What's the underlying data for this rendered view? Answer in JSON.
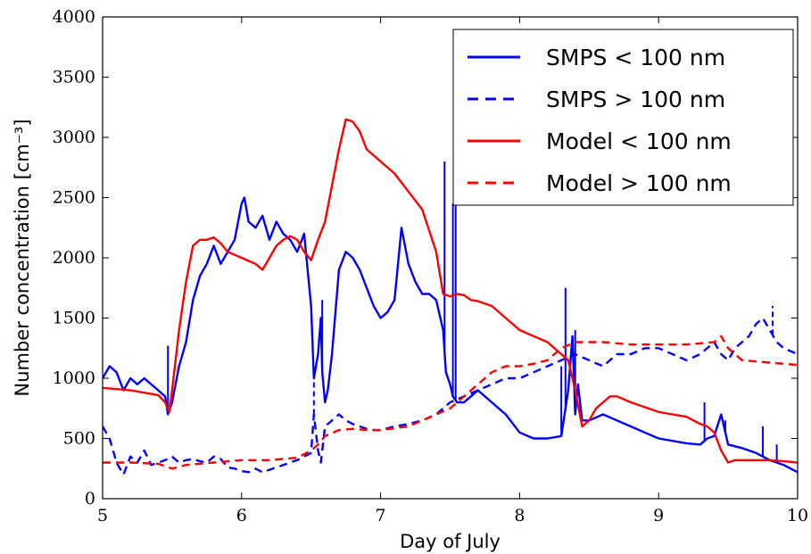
{
  "chart_data": {
    "type": "line",
    "xlabel": "Day of July",
    "ylabel": "Number concentration [cm⁻³]",
    "xlim": [
      5,
      10
    ],
    "ylim": [
      0,
      4000
    ],
    "xticks": [
      5,
      6,
      7,
      8,
      9,
      10
    ],
    "yticks": [
      0,
      500,
      1000,
      1500,
      2000,
      2500,
      3000,
      3500,
      4000
    ],
    "grid": false,
    "legend_position": "top-right",
    "series": [
      {
        "name": "SMPS < 100 nm",
        "legend_main": "SMPS",
        "legend_op": "<",
        "legend_size": "100 nm",
        "color": "#0000ff",
        "dash": "solid",
        "x": [
          5.0,
          5.05,
          5.1,
          5.15,
          5.2,
          5.25,
          5.3,
          5.35,
          5.4,
          5.45,
          5.47,
          5.5,
          5.55,
          5.6,
          5.65,
          5.7,
          5.75,
          5.8,
          5.85,
          5.9,
          5.95,
          6.0,
          6.02,
          6.05,
          6.1,
          6.15,
          6.2,
          6.25,
          6.3,
          6.35,
          6.4,
          6.45,
          6.5,
          6.52,
          6.55,
          6.57,
          6.58,
          6.6,
          6.62,
          6.65,
          6.7,
          6.75,
          6.8,
          6.85,
          6.9,
          6.95,
          7.0,
          7.05,
          7.1,
          7.15,
          7.2,
          7.25,
          7.3,
          7.35,
          7.4,
          7.45,
          7.47,
          7.5,
          7.52,
          7.55,
          7.6,
          7.65,
          7.7,
          7.75,
          7.8,
          7.85,
          7.9,
          8.0,
          8.1,
          8.2,
          8.3,
          8.35,
          8.38,
          8.4,
          8.42,
          8.45,
          8.5,
          8.6,
          8.7,
          8.8,
          8.9,
          9.0,
          9.1,
          9.2,
          9.3,
          9.35,
          9.4,
          9.45,
          9.5,
          9.6,
          9.7,
          9.8,
          9.9,
          10.0
        ],
        "y": [
          1000,
          1100,
          1050,
          900,
          1000,
          950,
          1000,
          950,
          900,
          850,
          700,
          800,
          1100,
          1300,
          1650,
          1850,
          1950,
          2100,
          1950,
          2050,
          2150,
          2450,
          2500,
          2300,
          2250,
          2350,
          2150,
          2300,
          2200,
          2150,
          2050,
          2200,
          1600,
          1000,
          1200,
          1500,
          1050,
          800,
          900,
          1200,
          1900,
          2050,
          2000,
          1900,
          1750,
          1600,
          1500,
          1550,
          1650,
          2250,
          1950,
          1800,
          1700,
          1700,
          1650,
          1400,
          1050,
          950,
          850,
          800,
          800,
          850,
          900,
          850,
          800,
          750,
          700,
          550,
          500,
          500,
          520,
          900,
          1350,
          700,
          950,
          650,
          650,
          700,
          650,
          600,
          550,
          500,
          480,
          460,
          450,
          500,
          520,
          700,
          450,
          420,
          380,
          320,
          280,
          220
        ],
        "spikes": [
          {
            "x": 5.47,
            "y": 1270
          },
          {
            "x": 6.58,
            "y": 1650
          },
          {
            "x": 7.46,
            "y": 2800
          },
          {
            "x": 7.52,
            "y": 2450
          },
          {
            "x": 7.54,
            "y": 2550
          },
          {
            "x": 8.3,
            "y": 1100
          },
          {
            "x": 8.33,
            "y": 1750
          },
          {
            "x": 8.4,
            "y": 1400
          },
          {
            "x": 9.33,
            "y": 800
          },
          {
            "x": 9.48,
            "y": 650
          },
          {
            "x": 9.75,
            "y": 600
          },
          {
            "x": 9.85,
            "y": 450
          }
        ]
      },
      {
        "name": "SMPS > 100 nm",
        "legend_main": "SMPS",
        "legend_op": ">",
        "legend_size": "100 nm",
        "color": "#0000ff",
        "dash": "dashed",
        "x": [
          5.0,
          5.05,
          5.1,
          5.15,
          5.2,
          5.25,
          5.3,
          5.35,
          5.4,
          5.45,
          5.5,
          5.55,
          5.6,
          5.65,
          5.7,
          5.75,
          5.8,
          5.85,
          5.9,
          5.95,
          6.0,
          6.05,
          6.1,
          6.15,
          6.2,
          6.25,
          6.3,
          6.35,
          6.4,
          6.45,
          6.5,
          6.52,
          6.55,
          6.57,
          6.6,
          6.65,
          6.7,
          6.75,
          6.8,
          6.85,
          6.9,
          6.95,
          7.0,
          7.1,
          7.2,
          7.3,
          7.4,
          7.5,
          7.6,
          7.7,
          7.8,
          7.9,
          8.0,
          8.1,
          8.2,
          8.3,
          8.4,
          8.5,
          8.6,
          8.7,
          8.8,
          8.9,
          9.0,
          9.1,
          9.2,
          9.3,
          9.4,
          9.45,
          9.5,
          9.55,
          9.6,
          9.65,
          9.7,
          9.75,
          9.8,
          9.85,
          9.9,
          10.0
        ],
        "y": [
          600,
          500,
          300,
          200,
          350,
          300,
          400,
          280,
          300,
          320,
          350,
          300,
          320,
          330,
          310,
          300,
          350,
          330,
          260,
          250,
          230,
          220,
          250,
          220,
          240,
          260,
          280,
          300,
          320,
          350,
          380,
          700,
          400,
          300,
          600,
          650,
          700,
          650,
          620,
          600,
          580,
          570,
          570,
          600,
          620,
          650,
          700,
          800,
          850,
          900,
          950,
          1000,
          1000,
          1050,
          1100,
          1150,
          1200,
          1150,
          1100,
          1200,
          1200,
          1250,
          1250,
          1200,
          1150,
          1200,
          1300,
          1200,
          1150,
          1250,
          1300,
          1350,
          1450,
          1500,
          1400,
          1300,
          1250,
          1200
        ],
        "spikes": [
          {
            "x": 6.52,
            "y": 980
          },
          {
            "x": 9.82,
            "y": 1600
          }
        ]
      },
      {
        "name": "Model < 100 nm",
        "legend_main": "Model",
        "legend_op": "<",
        "legend_size": "100 nm",
        "color": "#ff0000",
        "dash": "solid",
        "x": [
          5.0,
          5.2,
          5.4,
          5.45,
          5.48,
          5.5,
          5.55,
          5.6,
          5.65,
          5.7,
          5.75,
          5.8,
          5.85,
          5.9,
          6.0,
          6.1,
          6.15,
          6.2,
          6.25,
          6.3,
          6.35,
          6.4,
          6.45,
          6.5,
          6.55,
          6.6,
          6.65,
          6.7,
          6.75,
          6.8,
          6.85,
          6.9,
          7.0,
          7.1,
          7.2,
          7.3,
          7.4,
          7.45,
          7.5,
          7.55,
          7.6,
          7.65,
          7.7,
          7.8,
          7.9,
          8.0,
          8.1,
          8.2,
          8.25,
          8.3,
          8.35,
          8.4,
          8.45,
          8.5,
          8.55,
          8.6,
          8.65,
          8.7,
          8.8,
          8.9,
          9.0,
          9.1,
          9.2,
          9.3,
          9.35,
          9.4,
          9.45,
          9.5,
          9.55,
          9.6,
          9.7,
          9.8,
          9.9,
          10.0
        ],
        "y": [
          920,
          900,
          860,
          800,
          720,
          900,
          1400,
          1800,
          2100,
          2150,
          2150,
          2170,
          2120,
          2050,
          2000,
          1950,
          1900,
          2000,
          2100,
          2150,
          2180,
          2150,
          2050,
          1980,
          2150,
          2300,
          2600,
          2900,
          3150,
          3130,
          3050,
          2900,
          2800,
          2700,
          2550,
          2400,
          2050,
          1700,
          1680,
          1700,
          1690,
          1650,
          1640,
          1600,
          1500,
          1400,
          1350,
          1300,
          1250,
          1200,
          1150,
          900,
          600,
          650,
          750,
          800,
          850,
          850,
          800,
          760,
          720,
          700,
          680,
          620,
          600,
          550,
          400,
          300,
          320,
          320,
          320,
          320,
          310,
          300
        ]
      },
      {
        "name": "Model > 100 nm",
        "legend_main": "Model",
        "legend_op": ">",
        "legend_size": "100 nm",
        "color": "#ff0000",
        "dash": "dashed",
        "x": [
          5.0,
          5.2,
          5.4,
          5.5,
          5.6,
          5.8,
          6.0,
          6.2,
          6.4,
          6.5,
          6.55,
          6.6,
          6.7,
          6.8,
          6.9,
          7.0,
          7.2,
          7.4,
          7.5,
          7.6,
          7.7,
          7.8,
          7.9,
          8.0,
          8.1,
          8.2,
          8.3,
          8.4,
          8.5,
          8.6,
          8.8,
          9.0,
          9.2,
          9.4,
          9.45,
          9.5,
          9.6,
          9.8,
          10.0
        ],
        "y": [
          300,
          300,
          290,
          250,
          280,
          300,
          320,
          320,
          340,
          400,
          450,
          520,
          570,
          580,
          570,
          570,
          600,
          700,
          750,
          850,
          950,
          1050,
          1100,
          1100,
          1120,
          1150,
          1250,
          1300,
          1300,
          1300,
          1280,
          1280,
          1280,
          1300,
          1350,
          1250,
          1150,
          1130,
          1110
        ]
      }
    ]
  }
}
